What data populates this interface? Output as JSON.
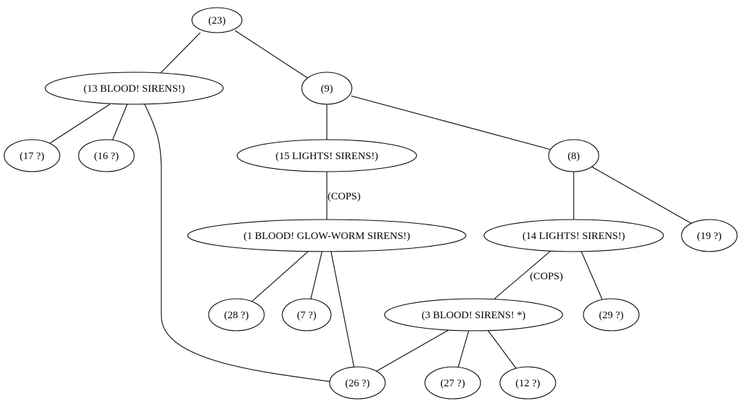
{
  "graph": {
    "nodes": [
      {
        "id": "n23",
        "label": "(23)"
      },
      {
        "id": "n13",
        "label": "(13 BLOOD! SIRENS!)"
      },
      {
        "id": "n9",
        "label": "(9)"
      },
      {
        "id": "n17",
        "label": "(17 ?)"
      },
      {
        "id": "n16",
        "label": "(16 ?)"
      },
      {
        "id": "n15",
        "label": "(15 LIGHTS! SIRENS!)"
      },
      {
        "id": "n8",
        "label": "(8)"
      },
      {
        "id": "n1",
        "label": "(1 BLOOD! GLOW-WORM SIRENS!)"
      },
      {
        "id": "n14",
        "label": "(14 LIGHTS! SIRENS!)"
      },
      {
        "id": "n19",
        "label": "(19 ?)"
      },
      {
        "id": "n28",
        "label": "(28 ?)"
      },
      {
        "id": "n7",
        "label": "(7 ?)"
      },
      {
        "id": "n3",
        "label": "(3 BLOOD! SIRENS! *)"
      },
      {
        "id": "n29",
        "label": "(29 ?)"
      },
      {
        "id": "n26",
        "label": "(26 ?)"
      },
      {
        "id": "n27",
        "label": "(27 ?)"
      },
      {
        "id": "n12",
        "label": "(12 ?)"
      }
    ],
    "edges": [
      {
        "id": "e23-13",
        "from": "n23",
        "to": "n13",
        "label": ""
      },
      {
        "id": "e23-9",
        "from": "n23",
        "to": "n9",
        "label": ""
      },
      {
        "id": "e13-17",
        "from": "n13",
        "to": "n17",
        "label": ""
      },
      {
        "id": "e13-16",
        "from": "n13",
        "to": "n16",
        "label": ""
      },
      {
        "id": "e13-26",
        "from": "n13",
        "to": "n26",
        "label": ""
      },
      {
        "id": "e9-15",
        "from": "n9",
        "to": "n15",
        "label": ""
      },
      {
        "id": "e9-8",
        "from": "n9",
        "to": "n8",
        "label": ""
      },
      {
        "id": "e15-1",
        "from": "n15",
        "to": "n1",
        "label": "(COPS)"
      },
      {
        "id": "e8-14",
        "from": "n8",
        "to": "n14",
        "label": ""
      },
      {
        "id": "e8-19",
        "from": "n8",
        "to": "n19",
        "label": ""
      },
      {
        "id": "e1-28",
        "from": "n1",
        "to": "n28",
        "label": ""
      },
      {
        "id": "e1-7",
        "from": "n1",
        "to": "n7",
        "label": ""
      },
      {
        "id": "e1-26",
        "from": "n1",
        "to": "n26",
        "label": ""
      },
      {
        "id": "e14-3",
        "from": "n14",
        "to": "n3",
        "label": "(COPS)"
      },
      {
        "id": "e14-29",
        "from": "n14",
        "to": "n29",
        "label": ""
      },
      {
        "id": "e3-26",
        "from": "n3",
        "to": "n26",
        "label": ""
      },
      {
        "id": "e3-27",
        "from": "n3",
        "to": "n27",
        "label": ""
      },
      {
        "id": "e3-12",
        "from": "n3",
        "to": "n12",
        "label": ""
      }
    ]
  }
}
